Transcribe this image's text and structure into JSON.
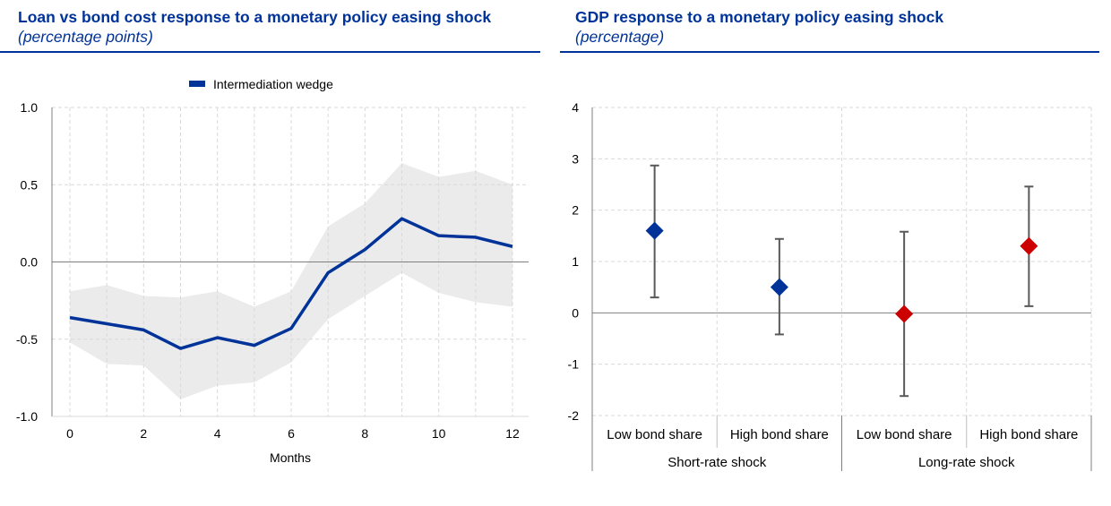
{
  "chart_data": [
    {
      "type": "line",
      "title": "Loan vs bond cost response to a monetary policy easing shock",
      "subtitle": "(percentage points)",
      "xlabel": "Months",
      "ylabel": "",
      "x": [
        0,
        1,
        2,
        3,
        4,
        5,
        6,
        7,
        8,
        9,
        10,
        11,
        12
      ],
      "x_ticks": [
        "0",
        "2",
        "4",
        "6",
        "8",
        "10",
        "12"
      ],
      "y_ticks": [
        "1.0",
        "0.5",
        "0.0",
        "-0.5",
        "-1.0"
      ],
      "xlim": [
        0,
        12
      ],
      "ylim": [
        -1.0,
        1.0
      ],
      "grid": true,
      "legend": "top-center",
      "series": [
        {
          "name": "Intermediation wedge",
          "color": "#003399",
          "values": [
            -0.36,
            -0.4,
            -0.44,
            -0.56,
            -0.49,
            -0.54,
            -0.43,
            -0.07,
            0.08,
            0.28,
            0.17,
            0.16,
            0.1
          ]
        }
      ],
      "band": {
        "color": "#ebebeb",
        "lower": [
          -0.52,
          -0.66,
          -0.67,
          -0.89,
          -0.8,
          -0.78,
          -0.65,
          -0.37,
          -0.22,
          -0.07,
          -0.2,
          -0.26,
          -0.29
        ],
        "upper": [
          -0.19,
          -0.15,
          -0.22,
          -0.23,
          -0.19,
          -0.29,
          -0.19,
          0.23,
          0.38,
          0.64,
          0.55,
          0.59,
          0.5
        ]
      }
    },
    {
      "type": "scatter",
      "title": "GDP response to a monetary policy easing shock",
      "subtitle": "(percentage)",
      "xlabel": "",
      "ylabel": "",
      "categories": [
        "Low bond share",
        "High bond share",
        "Low bond share",
        "High bond share"
      ],
      "groups": [
        {
          "label": "Short-rate shock",
          "span": [
            0,
            1
          ]
        },
        {
          "label": "Long-rate shock",
          "span": [
            2,
            3
          ]
        }
      ],
      "y_ticks": [
        "4",
        "3",
        "2",
        "1",
        "0",
        "-1",
        "-2"
      ],
      "ylim": [
        -2,
        4
      ],
      "grid": true,
      "points": [
        {
          "value": 1.6,
          "lower": 0.3,
          "upper": 2.87,
          "color": "#003399"
        },
        {
          "value": 0.5,
          "lower": -0.42,
          "upper": 1.44,
          "color": "#003399"
        },
        {
          "value": -0.02,
          "lower": -1.62,
          "upper": 1.58,
          "color": "#cc0000"
        },
        {
          "value": 1.3,
          "lower": 0.13,
          "upper": 2.46,
          "color": "#cc0000"
        }
      ],
      "errorbar_color": "#595959"
    }
  ]
}
